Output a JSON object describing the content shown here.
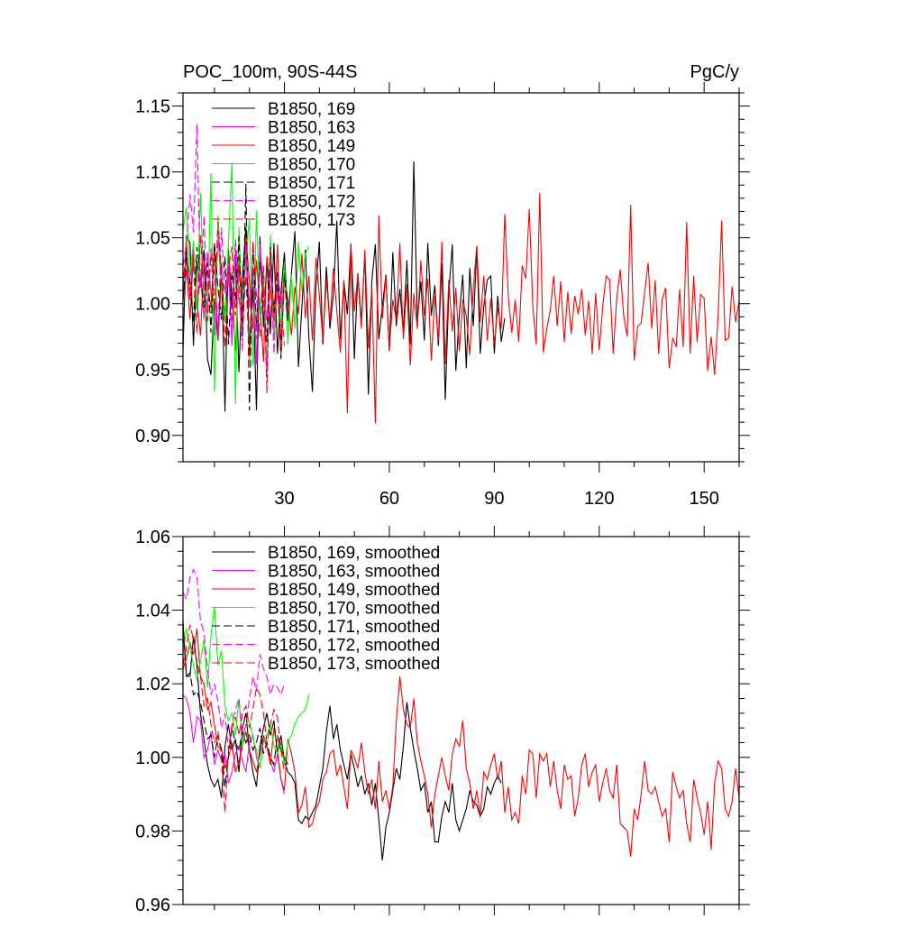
{
  "colors": {
    "169": "#000000",
    "163": "#ff00ff",
    "149": "#ff0000",
    "170": "#00ff00",
    "171": "#000000",
    "172": "#ff00ff",
    "173": "#ff0000"
  },
  "chart_data": [
    {
      "type": "line",
      "title": "POC_100m, 90S-44S",
      "units": "PgC/y",
      "xlim": [
        1,
        160
      ],
      "ylim": [
        0.88,
        1.16
      ],
      "xticks": [
        30,
        60,
        90,
        120,
        150
      ],
      "yticks": [
        0.9,
        0.95,
        1.0,
        1.05,
        1.1,
        1.15
      ],
      "ytick_labels": [
        "0.90",
        "0.95",
        "1.00",
        "1.05",
        "1.10",
        "1.15"
      ],
      "legend_position": "top-left",
      "series": [
        {
          "name": "B1850, 169",
          "key": "169",
          "dash": "solid",
          "values": [
            0.963,
            1.052,
            1.046,
            0.968,
            1.032,
            1.012,
            1.041,
            0.958,
            0.946,
            1.004,
            0.972,
            1.031,
            0.918,
            1.042,
            0.996,
            1.035,
            0.948,
            1.021,
            1.058,
            0.962,
            1.013,
            0.919,
            1.051,
            0.982,
            1.034,
            0.977,
            1.046,
            0.962,
            1.008,
            1.039,
            0.987,
            1.023,
            1.055,
            0.952,
            0.997,
            1.041,
            0.974,
            0.933,
            1.012,
            1.047,
            0.969,
            1.028,
            0.981,
            1.008,
            1.063,
            0.973,
            1.017,
            0.992,
            1.045,
            0.958,
            1.023,
            0.986,
            1.038,
            0.931,
            1.017,
            1.045,
            0.973,
            0.998,
            1.022,
            0.964,
            1.039,
            0.983,
            1.011,
            0.978,
            1.033,
            0.969,
            1.108,
            0.987,
            1.017,
            0.972,
            1.046,
            0.991,
            1.014,
            0.968,
            1.031,
            0.927,
            1.008,
            1.045,
            0.949,
            0.992,
            1.022,
            0.951,
            1.027,
            0.983,
            1.043,
            0.962,
            0.998,
            1.018,
            1.021,
            0.962,
            1.006,
            0.971,
            0.989
          ]
        },
        {
          "name": "B1850, 163",
          "key": "163",
          "dash": "solid",
          "values": [
            1.017,
            1.033,
            1.006,
            1.046,
            0.997,
            1.021,
            0.988,
            1.039,
            1.008,
            0.976,
            1.051,
            1.014,
            0.993,
            1.028,
            0.968,
            1.042,
            1.003,
            0.982,
            1.036,
            0.997,
            1.024,
            0.954,
            1.045,
            1.011,
            0.987,
            1.032,
            0.973,
            1.019,
            0.997,
            1.028
          ]
        },
        {
          "name": "B1850, 149",
          "key": "149",
          "dash": "solid",
          "values": [
            1.004,
            1.026,
            0.988,
            1.038,
            1.003,
            0.976,
            1.032,
            1.012,
            0.997,
            1.045,
            0.972,
            1.021,
            0.986,
            1.038,
            1.009,
            0.964,
            1.028,
            0.993,
            1.052,
            1.017,
            0.981,
            1.033,
            0.999,
            0.956,
            1.036,
            1.009,
            0.987,
            1.045,
            0.968,
            1.021,
            1.003,
            0.976,
            1.013,
            0.992,
            1.038,
            0.989,
            1.021,
            0.972,
            1.035,
            1.006,
            0.973,
            1.018,
            0.986,
            1.027,
            0.994,
            0.963,
            1.018,
            0.917,
            1.046,
            0.994,
            1.022,
            0.981,
            1.041,
            0.966,
            1.012,
            0.909,
            1.067,
            0.989,
            1.021,
            0.965,
            1.003,
            0.987,
            1.046,
            0.973,
            1.015,
            0.953,
            1.008,
            0.981,
            1.033,
            0.991,
            1.019,
            0.957,
            1.006,
            0.972,
            1.047,
            0.954,
            1.018,
            0.979,
            1.012,
            0.964,
            1.003,
            0.991,
            0.961,
            1.012,
            1.044,
            0.986,
            1.021,
            0.972,
            1.004,
            0.969,
            0.997,
            0.981,
            1.068,
            1.005,
            0.978,
            1.003,
            0.971,
            1.029,
            1.019,
            1.072,
            0.998,
            0.969,
            1.084,
            0.963,
            0.981,
            0.995,
            1.021,
            0.983,
            1.017,
            0.971,
            1.009,
            0.977,
            1.006,
            0.992,
            1.011,
            0.976,
            1.002,
            0.962,
            1.008,
            0.965,
            0.998,
            1.021,
            1.018,
            0.962,
            1.004,
            1.026,
            0.991,
            0.975,
            1.075,
            0.957,
            0.983,
            0.985,
            1.009,
            1.031,
            0.981,
            1.018,
            0.962,
            1.003,
            1.012,
            0.951,
            0.974,
            0.967,
            1.011,
            0.967,
            1.062,
            0.962,
            1.021,
            0.971,
            1.007,
            1.004,
            0.949,
            0.975,
            0.946,
            0.991,
            1.063,
            0.972,
            0.974,
            1.013,
            0.986,
            1.002,
            1.011,
            1.014
          ]
        },
        {
          "name": "B1850, 170",
          "key": "170",
          "dash": "solid",
          "values": [
            1.056,
            1.073,
            1.021,
            1.048,
            0.996,
            1.084,
            1.002,
            0.986,
            1.099,
            0.933,
            1.067,
            1.018,
            0.985,
            1.046,
            1.107,
            0.924,
            1.058,
            0.982,
            1.037,
            1.064,
            0.953,
            1.071,
            0.993,
            1.026,
            0.948,
            1.052,
            0.972,
            1.015,
            0.983,
            1.031,
            0.969,
            1.022,
            0.981,
            1.047,
            1.009,
            1.038,
            1.043
          ]
        },
        {
          "name": "B1850, 171",
          "key": "171",
          "dash": "dashed",
          "values": [
            1.002,
            1.038,
            1.015,
            0.986,
            1.043,
            1.021,
            0.997,
            1.031,
            0.978,
            1.046,
            1.012,
            0.988,
            1.036,
            0.969,
            1.024,
            1.003,
            1.051,
            0.975,
            1.091,
            0.919,
            1.047,
            0.982,
            1.032,
            1.002,
            0.971,
            1.043,
            0.993,
            1.025,
            0.958,
            1.022,
            0.987
          ]
        },
        {
          "name": "B1850, 172",
          "key": "172",
          "dash": "dashed",
          "values": [
            1.028,
            1.047,
            1.083,
            1.054,
            1.136,
            1.012,
            1.067,
            0.994,
            1.042,
            1.023,
            0.976,
            1.058,
            1.007,
            1.032,
            0.981,
            1.049,
            1.016,
            0.964,
            1.045,
            0.998,
            1.027,
            0.973,
            1.039,
            1.008,
            0.947,
            1.033,
            0.962,
            1.021,
            1.006,
            0.968
          ]
        },
        {
          "name": "B1850, 173",
          "key": "173",
          "dash": "dashed",
          "values": [
            1.013,
            1.046,
            1.003,
            1.031,
            0.978,
            1.052,
            1.009,
            0.987,
            1.038,
            0.996,
            1.062,
            1.019,
            0.967,
            1.027,
            1.043,
            0.991,
            1.036,
            0.982,
            1.021,
            0.958,
            1.047,
            1.006,
            0.975,
            1.029,
            0.932,
            1.041,
            0.987,
            1.014,
            0.961,
            1.023
          ]
        }
      ]
    },
    {
      "type": "line",
      "title": "",
      "xlim": [
        1,
        160
      ],
      "ylim": [
        0.96,
        1.06
      ],
      "xticks": [
        30,
        60,
        90,
        120,
        150
      ],
      "yticks": [
        0.96,
        0.98,
        1.0,
        1.02,
        1.04,
        1.06
      ],
      "ytick_labels": [
        "0.96",
        "0.98",
        "1.00",
        "1.02",
        "1.04",
        "1.06"
      ],
      "legend_position": "top-left",
      "series": [
        {
          "name": "B1850, 169, smoothed",
          "key": "169",
          "dash": "solid",
          "values": [
            1.037,
            1.022,
            1.022,
            1.033,
            1.025,
            1.012,
            1.005,
            0.998,
            0.994,
            0.992,
            0.994,
            0.989,
            1.003,
            1.009,
            1.002,
            1.005,
            0.996,
            1.008,
            1.012,
            1.002,
            0.996,
            0.992,
            1.003,
            1.008,
            1.012,
            1.006,
            1.01,
            1.001,
            1.006,
            0.999,
            0.996,
            0.995,
            0.993,
            0.983,
            0.982,
            0.984,
            0.983,
            0.985,
            0.987,
            0.992,
            0.997,
            1.007,
            1.014,
            1.005,
            1.009,
            1.002,
            0.998,
            0.994,
            1.001,
            0.997,
            0.992,
            0.995,
            0.99,
            0.993,
            0.987,
            0.993,
            0.983,
            0.972,
            0.981,
            0.985,
            0.991,
            0.997,
            0.994,
            1.003,
            1.015,
            1.008,
            1.002,
            0.997,
            0.991,
            0.993,
            0.985,
            0.988,
            0.977,
            0.977,
            0.984,
            0.988,
            0.985,
            0.993,
            0.983,
            0.98,
            0.983,
            0.986,
            0.991,
            0.988,
            0.987,
            0.984,
            0.986,
            0.992,
            0.99,
            0.993,
            0.995,
            0.993
          ]
        },
        {
          "name": "B1850, 163, smoothed",
          "key": "163",
          "dash": "solid",
          "values": [
            1.017,
            1.016,
            1.012,
            1.004,
            1.011,
            1.01,
            1.0,
            1.002,
            1.007,
            0.998,
            1.002,
            0.999,
            1.001,
            0.993,
            0.996,
            1.001,
            1.003,
            0.999,
            0.996,
            1.004,
            1.006,
            1.0,
            0.997,
            1.005,
            1.003,
            0.999,
            0.996,
            1.001,
            0.994,
            0.99
          ]
        },
        {
          "name": "B1850, 149, smoothed",
          "key": "149",
          "dash": "solid",
          "values": [
            1.024,
            1.027,
            1.031,
            1.028,
            1.035,
            1.022,
            1.02,
            1.013,
            1.015,
            1.009,
            1.003,
            1.002,
            0.997,
            1.0,
            1.004,
            0.996,
            0.999,
            1.003,
            1.007,
            1.002,
            0.999,
            0.996,
            1.001,
            1.006,
            1.003,
            0.998,
            1.008,
            1.002,
            0.994,
            0.991,
            1.005,
            1.001,
            0.996,
            0.985,
            0.987,
            0.992,
            0.981,
            0.982,
            0.986,
            0.988,
            0.994,
            0.996,
            1.001,
            1.002,
            0.995,
            0.998,
            0.992,
            0.986,
            1.002,
            1.0,
            0.997,
            1.004,
            0.996,
            0.99,
            0.994,
            0.986,
            0.999,
            0.988,
            0.991,
            0.986,
            0.992,
            1.01,
            1.022,
            1.013,
            1.009,
            1.008,
            1.016,
            1.004,
            0.999,
            0.995,
            0.99,
            0.981,
            0.99,
            0.995,
            1.0,
            0.995,
            0.991,
            1.001,
            1.005,
            1.003,
            1.01,
            0.997,
            0.993,
            0.986,
            0.991,
            0.984,
            0.996,
            0.994,
            0.998,
            1.001,
            0.994,
            0.999,
            0.985,
            0.992,
            0.983,
            0.985,
            0.982,
            0.995,
            0.99,
            1.002,
            1.001,
            0.989,
            1.001,
            0.999,
            1.001,
            0.992,
            0.999,
            0.991,
            0.986,
            0.998,
            0.994,
            0.995,
            0.984,
            0.989,
            0.998,
            1.001,
            0.992,
            0.996,
            0.998,
            0.988,
            0.993,
            0.997,
            0.991,
            0.989,
            0.998,
            0.982,
            0.981,
            0.98,
            0.973,
            0.986,
            0.983,
            0.99,
            0.999,
            0.991,
            0.99,
            0.992,
            0.988,
            0.984,
            0.986,
            0.977,
            0.996,
            0.992,
            0.989,
            0.991,
            0.982,
            0.977,
            0.994,
            0.989,
            0.985,
            0.979,
            0.988,
            0.975,
            0.993,
            0.999,
            0.997,
            0.986,
            0.984,
            0.988,
            0.997,
            0.989,
            0.985,
            0.986,
            0.986,
            0.98,
            0.984,
            0.977
          ]
        },
        {
          "name": "B1850, 170, smoothed",
          "key": "170",
          "dash": "solid",
          "values": [
            1.028,
            1.035,
            1.03,
            1.025,
            1.021,
            1.026,
            1.032,
            1.019,
            1.033,
            1.041,
            1.025,
            1.029,
            1.014,
            1.01,
            1.012,
            1.006,
            1.016,
            1.003,
            1.009,
            1.01,
            1.005,
            1.002,
            0.997,
            1.004,
            1.006,
            1.009,
            1.003,
            1.001,
            1.004,
            0.998,
            1.004,
            1.006,
            1.009,
            1.011,
            1.012,
            1.013,
            1.017
          ]
        },
        {
          "name": "B1850, 171, smoothed",
          "key": "171",
          "dash": "dashed",
          "values": [
            1.035,
            1.022,
            1.023,
            1.017,
            1.018,
            1.015,
            1.01,
            1.005,
            1.006,
            1.0,
            1.006,
            1.002,
            0.992,
            1.0,
            1.008,
            1.004,
            1.002,
            1.007,
            1.004,
            1.006,
            1.002,
            1.004,
            1.008,
            1.001,
            1.004,
            1.0,
            0.998,
            1.006,
            1.002,
            1.0,
            0.998
          ]
        },
        {
          "name": "B1850, 172, smoothed",
          "key": "172",
          "dash": "dashed",
          "values": [
            1.045,
            1.043,
            1.049,
            1.051,
            1.049,
            1.037,
            1.034,
            1.024,
            1.017,
            1.02,
            1.015,
            1.008,
            1.012,
            1.002,
            1.009,
            1.013,
            1.016,
            1.005,
            1.009,
            1.016,
            1.022,
            1.018,
            1.028,
            1.024,
            1.022,
            1.017,
            1.02,
            1.019,
            1.017,
            1.02
          ]
        },
        {
          "name": "B1850, 173, smoothed",
          "key": "173",
          "dash": "dashed",
          "values": [
            1.025,
            1.03,
            1.036,
            1.032,
            1.026,
            1.022,
            1.014,
            1.016,
            1.009,
            1.004,
            1.007,
            1.0,
            0.985,
            1.002,
            1.008,
            1.011,
            1.006,
            1.012,
            1.014,
            1.008,
            1.013,
            1.019,
            1.017,
            1.012,
            1.004,
            1.009,
            1.013,
            1.011,
            1.002,
            0.996
          ]
        }
      ]
    }
  ]
}
